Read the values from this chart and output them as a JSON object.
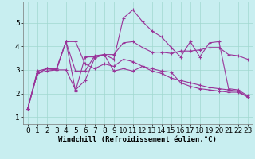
{
  "xlabel": "Windchill (Refroidissement éolien,°C)",
  "background_color": "#c8eef0",
  "grid_color": "#a0d8d0",
  "line_color": "#993399",
  "x": [
    0,
    1,
    2,
    3,
    4,
    5,
    6,
    7,
    8,
    9,
    10,
    11,
    12,
    13,
    14,
    15,
    16,
    17,
    18,
    19,
    20,
    21,
    22,
    23
  ],
  "series": [
    [
      1.35,
      2.95,
      3.05,
      3.05,
      4.2,
      2.1,
      3.55,
      3.55,
      3.65,
      3.45,
      5.2,
      5.55,
      5.05,
      4.65,
      4.4,
      3.95,
      3.55,
      4.2,
      3.55,
      4.15,
      4.2,
      2.2,
      2.15,
      1.9
    ],
    [
      1.35,
      2.85,
      3.05,
      3.0,
      3.0,
      2.15,
      2.55,
      3.5,
      3.65,
      3.65,
      4.15,
      4.2,
      3.95,
      3.75,
      3.75,
      3.7,
      3.8,
      3.8,
      3.85,
      3.95,
      3.95,
      3.65,
      3.6,
      3.45
    ],
    [
      1.35,
      2.85,
      2.95,
      3.0,
      4.2,
      4.2,
      3.25,
      3.05,
      3.25,
      3.15,
      3.45,
      3.35,
      3.15,
      2.95,
      2.85,
      2.65,
      2.55,
      2.45,
      2.35,
      2.25,
      2.2,
      2.15,
      2.1,
      1.85
    ],
    [
      1.35,
      2.85,
      3.05,
      3.0,
      4.2,
      2.95,
      2.95,
      3.6,
      3.65,
      2.95,
      3.05,
      2.95,
      3.15,
      3.05,
      2.95,
      2.9,
      2.45,
      2.3,
      2.2,
      2.15,
      2.1,
      2.05,
      2.05,
      1.85
    ]
  ],
  "ylim": [
    0.7,
    5.9
  ],
  "xlim": [
    -0.5,
    23.5
  ],
  "yticks": [
    1,
    2,
    3,
    4,
    5
  ],
  "xticks": [
    0,
    1,
    2,
    3,
    4,
    5,
    6,
    7,
    8,
    9,
    10,
    11,
    12,
    13,
    14,
    15,
    16,
    17,
    18,
    19,
    20,
    21,
    22,
    23
  ],
  "marker": "+",
  "markersize": 3.5,
  "linewidth": 0.8,
  "xlabel_fontsize": 6.5,
  "tick_fontsize": 6.5
}
